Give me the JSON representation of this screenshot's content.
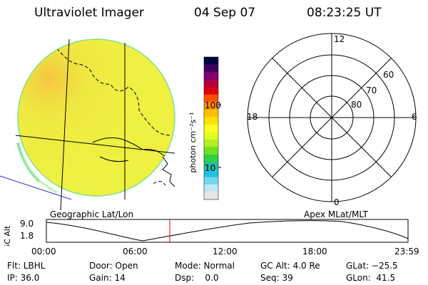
{
  "header": {
    "instrument": "Ultraviolet Imager",
    "date": "04 Sep 07",
    "time": "08:23:25 UT"
  },
  "colorbar": {
    "unit_label": "photon cm⁻²s⁻¹",
    "tick_labels": [
      "100",
      "10"
    ],
    "colors": [
      "#000040",
      "#400060",
      "#800070",
      "#b00040",
      "#e00010",
      "#ff5000",
      "#ff9000",
      "#ffc000",
      "#ffe000",
      "#ffff20",
      "#e0ff20",
      "#b0f020",
      "#70e020",
      "#30d040",
      "#20c0a0",
      "#20c0e0",
      "#70d8f0",
      "#c0e8f0",
      "#e6e6e6"
    ]
  },
  "map_label": "Geographic Lat/Lon",
  "polar": {
    "label": "Apex MLat/MLT",
    "lat_labels": [
      "60",
      "70",
      "80"
    ],
    "mlt_labels": {
      "top": "12",
      "left": "18",
      "right": "6",
      "bottom": "0"
    }
  },
  "timeline": {
    "ylabel": "GC Alt",
    "y_ticks": [
      "9.0",
      "1.8"
    ],
    "x_ticks": [
      "00:00",
      "06:00",
      "12:00",
      "18:00",
      "23:59"
    ],
    "current_marker_color": "#e00000"
  },
  "status": {
    "row1": [
      "Flt: LBHL",
      "Door: Open",
      "Mode: Normal",
      "GC Alt: 4.0 Re",
      "GLat: −25.5"
    ],
    "row2": [
      "IP: 36.0",
      "Gain: 14",
      "Dsp:    0.0",
      "Seq: 39",
      "GLon:  41.5"
    ]
  }
}
